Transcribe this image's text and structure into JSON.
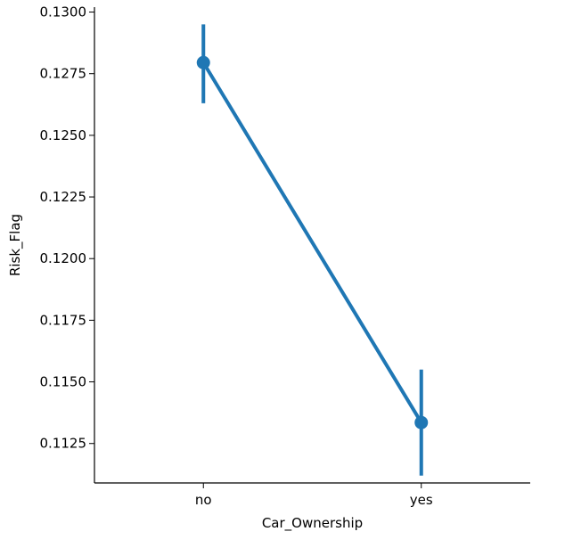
{
  "chart_data": {
    "type": "line",
    "title": "",
    "xlabel": "Car_Ownership",
    "ylabel": "Risk_Flag",
    "categories": [
      "no",
      "yes"
    ],
    "series": [
      {
        "values": [
          0.12795,
          0.11335
        ],
        "error_low": [
          0.1263,
          0.1112
        ],
        "error_high": [
          0.1295,
          0.1155
        ]
      }
    ],
    "ylim": [
      0.1109,
      0.1302
    ],
    "yticks": [
      0.1125,
      0.115,
      0.1175,
      0.12,
      0.1225,
      0.125,
      0.1275,
      0.13
    ],
    "ytick_labels": [
      "0.1125",
      "0.1150",
      "0.1175",
      "0.1200",
      "0.1225",
      "0.1250",
      "0.1275",
      "0.1300"
    ],
    "grid": false,
    "color": "#1f77b4"
  }
}
